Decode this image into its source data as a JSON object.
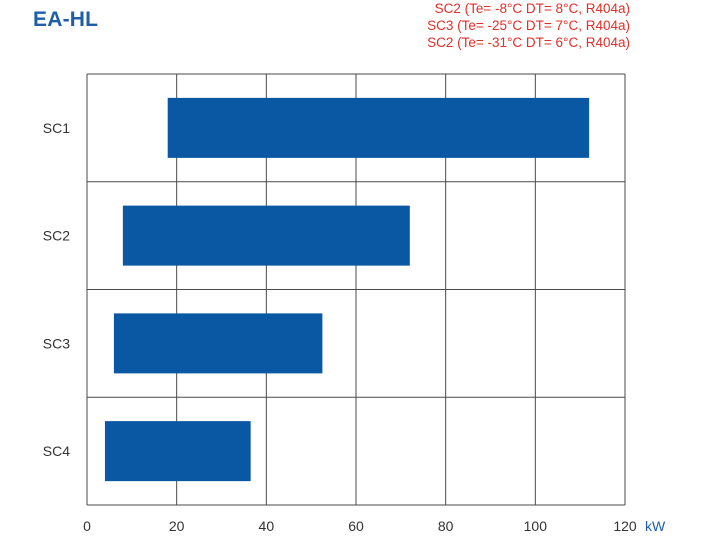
{
  "title": "EA-HL",
  "notes": [
    "SC2 (Te= -8°C DT= 8°C, R404a)",
    "SC3 (Te= -25°C DT= 7°C, R404a)",
    "SC2 (Te= -31°C DT= 6°C, R404a)"
  ],
  "chart_data": {
    "type": "bar",
    "orientation": "horizontal",
    "categories": [
      "SC1",
      "SC2",
      "SC3",
      "SC4"
    ],
    "ranges": [
      [
        18,
        112
      ],
      [
        8,
        72
      ],
      [
        6,
        52.5
      ],
      [
        4,
        36.5
      ]
    ],
    "xlim": [
      0,
      120
    ],
    "xticks": [
      0,
      20,
      40,
      60,
      80,
      100,
      120
    ],
    "unit": "kW",
    "grid": true,
    "bar_color": "#0a57a4",
    "unit_color": "#1e5fa8"
  }
}
